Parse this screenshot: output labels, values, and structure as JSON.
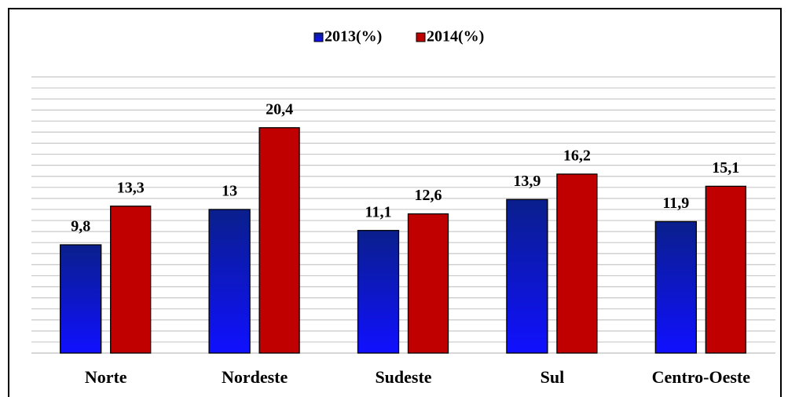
{
  "chart_data": {
    "type": "bar",
    "categories": [
      "Norte",
      "Nordeste",
      "Sudeste",
      "Sul",
      "Centro-Oeste"
    ],
    "series": [
      {
        "name": "2013(%)",
        "color": "#1010ff",
        "values": [
          9.8,
          13,
          11.1,
          13.9,
          11.9
        ],
        "value_labels": [
          "9,8",
          "13",
          "11,1",
          "13,9",
          "11,9"
        ]
      },
      {
        "name": "2014(%)",
        "color": "#c00000",
        "values": [
          13.3,
          20.4,
          12.6,
          16.2,
          15.1
        ],
        "value_labels": [
          "13,3",
          "20,4",
          "12,6",
          "16,2",
          "15,1"
        ]
      }
    ],
    "ylim": [
      0,
      25
    ],
    "yticks": [
      0,
      1,
      2,
      3,
      4,
      5,
      6,
      7,
      8,
      9,
      10,
      11,
      12,
      13,
      14,
      15,
      16,
      17,
      18,
      19,
      20,
      21,
      22,
      23,
      24,
      25
    ],
    "grid": true,
    "legend": "top"
  }
}
